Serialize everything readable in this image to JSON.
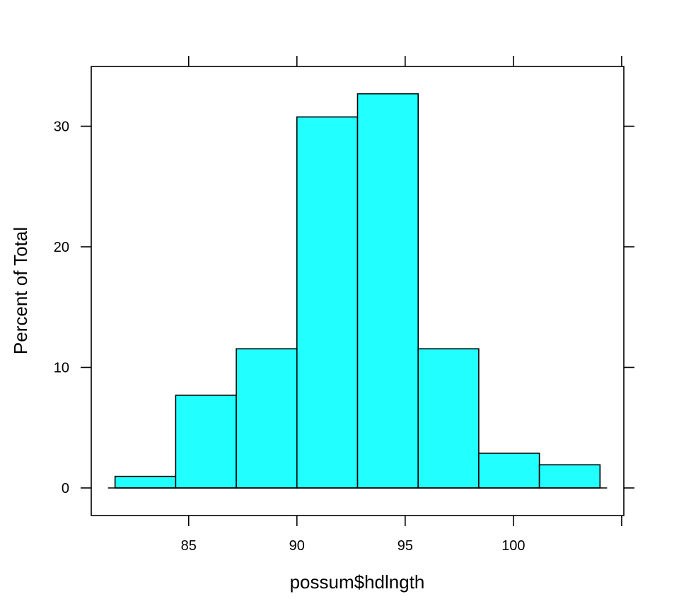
{
  "chart_data": {
    "type": "bar",
    "bin_edges": [
      81.6,
      84.4,
      87.2,
      90.0,
      92.8,
      95.6,
      98.4,
      101.2,
      104.0
    ],
    "values": [
      0.96,
      7.69,
      11.54,
      30.77,
      32.69,
      11.54,
      2.88,
      1.92
    ],
    "xlabel": "possum$hdlngth",
    "ylabel": "Percent of Total",
    "xlim": [
      80.5,
      105.1
    ],
    "ylim": [
      0,
      36
    ],
    "x_ticks": [
      85,
      90,
      95,
      100
    ],
    "x_tick_labels": [
      "85",
      "90",
      "95",
      "100"
    ],
    "x_tick_marks": [
      85,
      90,
      95,
      100,
      105
    ],
    "y_ticks": [
      0,
      10,
      20,
      30
    ],
    "y_tick_labels": [
      "0",
      "10",
      "20",
      "30"
    ],
    "bar_color": "#22ffff",
    "grid": false
  }
}
